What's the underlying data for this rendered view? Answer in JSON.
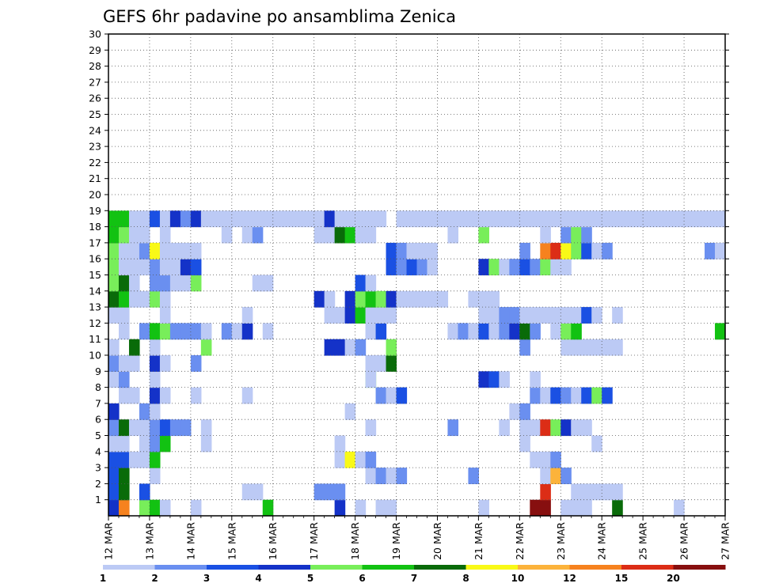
{
  "chart_data": {
    "type": "heatmap",
    "title": "GEFS 6hr padavine po ansamblima Zenica",
    "y_ticks": [
      "1",
      "2",
      "3",
      "4",
      "5",
      "6",
      "7",
      "8",
      "9",
      "10",
      "11",
      "12",
      "13",
      "14",
      "15",
      "16",
      "17",
      "18",
      "19",
      "20",
      "21",
      "22",
      "23",
      "24",
      "25",
      "26",
      "27",
      "28",
      "29",
      "30"
    ],
    "x_ticks": [
      "12 MAR",
      "13 MAR",
      "14 MAR",
      "15 MAR",
      "16 MAR",
      "17 MAR",
      "18 MAR",
      "19 MAR",
      "20 MAR",
      "21 MAR",
      "22 MAR",
      "23 MAR",
      "24 MAR",
      "25 MAR",
      "26 MAR",
      "27 MAR"
    ],
    "x_range": [
      0,
      60
    ],
    "y_range": [
      0,
      30
    ],
    "grid": true,
    "levels": [
      "1",
      "2",
      "3",
      "4",
      "5",
      "6",
      "7",
      "8",
      "10",
      "12",
      "15",
      "20"
    ],
    "colors": [
      "#bccaf5",
      "#6a8ff0",
      "#1a50e3",
      "#1432c8",
      "#78ee5a",
      "#12c212",
      "#096b09",
      "#f9f917",
      "#fcb33b",
      "#f6821e",
      "#dc2d16",
      "#870f0f"
    ],
    "cells": [
      [
        0,
        0,
        3
      ],
      [
        1,
        0,
        9
      ],
      [
        3,
        0,
        4
      ],
      [
        4,
        0,
        5
      ],
      [
        5,
        0,
        0
      ],
      [
        8,
        0,
        0
      ],
      [
        15,
        0,
        5
      ],
      [
        22,
        0,
        3
      ],
      [
        24,
        0,
        0
      ],
      [
        26,
        0,
        0
      ],
      [
        27,
        0,
        0
      ],
      [
        55,
        0,
        0
      ],
      [
        36,
        0,
        0
      ],
      [
        41,
        0,
        11
      ],
      [
        42,
        0,
        11
      ],
      [
        44,
        0,
        0
      ],
      [
        45,
        0,
        0
      ],
      [
        46,
        0,
        0
      ],
      [
        49,
        0,
        6
      ],
      [
        0,
        1,
        2
      ],
      [
        1,
        1,
        6
      ],
      [
        3,
        1,
        2
      ],
      [
        13,
        1,
        0
      ],
      [
        14,
        1,
        0
      ],
      [
        20,
        1,
        1
      ],
      [
        21,
        1,
        1
      ],
      [
        22,
        1,
        1
      ],
      [
        42,
        1,
        10
      ],
      [
        45,
        1,
        0
      ],
      [
        46,
        1,
        0
      ],
      [
        47,
        1,
        0
      ],
      [
        48,
        1,
        0
      ],
      [
        49,
        1,
        0
      ],
      [
        0,
        2,
        2
      ],
      [
        1,
        2,
        6
      ],
      [
        4,
        2,
        0
      ],
      [
        25,
        2,
        0
      ],
      [
        26,
        2,
        1
      ],
      [
        27,
        2,
        0
      ],
      [
        28,
        2,
        1
      ],
      [
        35,
        2,
        1
      ],
      [
        42,
        2,
        0
      ],
      [
        43,
        2,
        8
      ],
      [
        44,
        2,
        1
      ],
      [
        0,
        3,
        2
      ],
      [
        1,
        3,
        2
      ],
      [
        2,
        3,
        0
      ],
      [
        3,
        3,
        0
      ],
      [
        4,
        3,
        5
      ],
      [
        22,
        3,
        0
      ],
      [
        23,
        3,
        7
      ],
      [
        24,
        3,
        0
      ],
      [
        25,
        3,
        1
      ],
      [
        41,
        3,
        0
      ],
      [
        42,
        3,
        0
      ],
      [
        43,
        3,
        1
      ],
      [
        0,
        4,
        0
      ],
      [
        1,
        4,
        0
      ],
      [
        3,
        4,
        0
      ],
      [
        4,
        4,
        1
      ],
      [
        5,
        4,
        5
      ],
      [
        9,
        4,
        0
      ],
      [
        22,
        4,
        0
      ],
      [
        40,
        4,
        0
      ],
      [
        47,
        4,
        0
      ],
      [
        0,
        5,
        1
      ],
      [
        1,
        5,
        6
      ],
      [
        2,
        5,
        0
      ],
      [
        3,
        5,
        0
      ],
      [
        4,
        5,
        1
      ],
      [
        5,
        5,
        2
      ],
      [
        6,
        5,
        1
      ],
      [
        7,
        5,
        1
      ],
      [
        9,
        5,
        0
      ],
      [
        25,
        5,
        0
      ],
      [
        33,
        5,
        1
      ],
      [
        38,
        5,
        0
      ],
      [
        40,
        5,
        0
      ],
      [
        41,
        5,
        0
      ],
      [
        42,
        5,
        10
      ],
      [
        43,
        5,
        4
      ],
      [
        44,
        5,
        3
      ],
      [
        45,
        5,
        0
      ],
      [
        46,
        5,
        0
      ],
      [
        0,
        6,
        3
      ],
      [
        3,
        6,
        1
      ],
      [
        4,
        6,
        0
      ],
      [
        23,
        6,
        0
      ],
      [
        39,
        6,
        0
      ],
      [
        40,
        6,
        1
      ],
      [
        1,
        7,
        0
      ],
      [
        2,
        7,
        0
      ],
      [
        4,
        7,
        3
      ],
      [
        5,
        7,
        0
      ],
      [
        8,
        7,
        0
      ],
      [
        13,
        7,
        0
      ],
      [
        26,
        7,
        1
      ],
      [
        27,
        7,
        0
      ],
      [
        28,
        7,
        2
      ],
      [
        41,
        7,
        1
      ],
      [
        42,
        7,
        0
      ],
      [
        43,
        7,
        2
      ],
      [
        44,
        7,
        1
      ],
      [
        45,
        7,
        0
      ],
      [
        46,
        7,
        2
      ],
      [
        47,
        7,
        4
      ],
      [
        48,
        7,
        2
      ],
      [
        0,
        8,
        0
      ],
      [
        1,
        8,
        1
      ],
      [
        4,
        8,
        0
      ],
      [
        25,
        8,
        4
      ],
      [
        25,
        8,
        0
      ],
      [
        36,
        8,
        3
      ],
      [
        37,
        8,
        2
      ],
      [
        38,
        8,
        0
      ],
      [
        41,
        8,
        0
      ],
      [
        0,
        9,
        1
      ],
      [
        1,
        9,
        0
      ],
      [
        2,
        9,
        0
      ],
      [
        4,
        9,
        3
      ],
      [
        5,
        9,
        0
      ],
      [
        8,
        9,
        1
      ],
      [
        25,
        9,
        0
      ],
      [
        26,
        9,
        0
      ],
      [
        27,
        9,
        6
      ],
      [
        0,
        10,
        0
      ],
      [
        2,
        10,
        6
      ],
      [
        4,
        10,
        0
      ],
      [
        9,
        10,
        4
      ],
      [
        21,
        10,
        3
      ],
      [
        22,
        10,
        3
      ],
      [
        23,
        10,
        0
      ],
      [
        24,
        10,
        1
      ],
      [
        27,
        10,
        4
      ],
      [
        40,
        10,
        1
      ],
      [
        44,
        10,
        0
      ],
      [
        45,
        10,
        0
      ],
      [
        46,
        10,
        0
      ],
      [
        47,
        10,
        0
      ],
      [
        48,
        10,
        0
      ],
      [
        49,
        10,
        0
      ],
      [
        1,
        11,
        0
      ],
      [
        3,
        11,
        1
      ],
      [
        4,
        11,
        5
      ],
      [
        5,
        11,
        4
      ],
      [
        6,
        11,
        1
      ],
      [
        7,
        11,
        1
      ],
      [
        8,
        11,
        1
      ],
      [
        9,
        11,
        0
      ],
      [
        11,
        11,
        1
      ],
      [
        12,
        11,
        0
      ],
      [
        13,
        11,
        3
      ],
      [
        15,
        11,
        0
      ],
      [
        25,
        11,
        0
      ],
      [
        26,
        11,
        2
      ],
      [
        33,
        11,
        0
      ],
      [
        34,
        11,
        1
      ],
      [
        35,
        11,
        0
      ],
      [
        36,
        11,
        2
      ],
      [
        37,
        11,
        0
      ],
      [
        38,
        11,
        1
      ],
      [
        39,
        11,
        3
      ],
      [
        40,
        11,
        6
      ],
      [
        41,
        11,
        1
      ],
      [
        43,
        11,
        0
      ],
      [
        44,
        11,
        4
      ],
      [
        45,
        11,
        5
      ],
      [
        59,
        11,
        5
      ],
      [
        0,
        12,
        0
      ],
      [
        1,
        12,
        0
      ],
      [
        5,
        12,
        0
      ],
      [
        13,
        12,
        0
      ],
      [
        21,
        12,
        0
      ],
      [
        22,
        12,
        0
      ],
      [
        23,
        12,
        3
      ],
      [
        24,
        12,
        5
      ],
      [
        25,
        12,
        0
      ],
      [
        26,
        12,
        0
      ],
      [
        27,
        12,
        0
      ],
      [
        36,
        12,
        0
      ],
      [
        37,
        12,
        0
      ],
      [
        38,
        12,
        1
      ],
      [
        39,
        12,
        1
      ],
      [
        40,
        12,
        0
      ],
      [
        41,
        12,
        0
      ],
      [
        42,
        12,
        0
      ],
      [
        43,
        12,
        0
      ],
      [
        44,
        12,
        0
      ],
      [
        45,
        12,
        0
      ],
      [
        46,
        12,
        2
      ],
      [
        47,
        12,
        0
      ],
      [
        49,
        12,
        0
      ],
      [
        0,
        13,
        6
      ],
      [
        1,
        13,
        5
      ],
      [
        2,
        13,
        0
      ],
      [
        3,
        13,
        0
      ],
      [
        4,
        13,
        4
      ],
      [
        5,
        13,
        0
      ],
      [
        20,
        13,
        3
      ],
      [
        21,
        13,
        0
      ],
      [
        23,
        13,
        3
      ],
      [
        24,
        13,
        4
      ],
      [
        25,
        13,
        5
      ],
      [
        26,
        13,
        4
      ],
      [
        27,
        13,
        3
      ],
      [
        28,
        13,
        0
      ],
      [
        29,
        13,
        0
      ],
      [
        30,
        13,
        0
      ],
      [
        31,
        13,
        0
      ],
      [
        32,
        13,
        0
      ],
      [
        35,
        13,
        0
      ],
      [
        36,
        13,
        0
      ],
      [
        37,
        13,
        0
      ],
      [
        0,
        14,
        4
      ],
      [
        1,
        14,
        6
      ],
      [
        2,
        14,
        0
      ],
      [
        4,
        14,
        1
      ],
      [
        5,
        14,
        1
      ],
      [
        6,
        14,
        0
      ],
      [
        7,
        14,
        0
      ],
      [
        8,
        14,
        4
      ],
      [
        14,
        14,
        0
      ],
      [
        15,
        14,
        0
      ],
      [
        24,
        14,
        2
      ],
      [
        25,
        14,
        0
      ],
      [
        0,
        15,
        4
      ],
      [
        1,
        15,
        0
      ],
      [
        2,
        15,
        0
      ],
      [
        3,
        15,
        0
      ],
      [
        4,
        15,
        1
      ],
      [
        5,
        15,
        0
      ],
      [
        6,
        15,
        0
      ],
      [
        7,
        15,
        3
      ],
      [
        8,
        15,
        2
      ],
      [
        27,
        15,
        2
      ],
      [
        28,
        15,
        1
      ],
      [
        29,
        15,
        2
      ],
      [
        30,
        15,
        1
      ],
      [
        31,
        15,
        0
      ],
      [
        36,
        15,
        3
      ],
      [
        37,
        15,
        4
      ],
      [
        38,
        15,
        0
      ],
      [
        39,
        15,
        1
      ],
      [
        40,
        15,
        2
      ],
      [
        41,
        15,
        1
      ],
      [
        42,
        15,
        4
      ],
      [
        43,
        15,
        0
      ],
      [
        44,
        15,
        0
      ],
      [
        0,
        16,
        4
      ],
      [
        1,
        16,
        0
      ],
      [
        2,
        16,
        0
      ],
      [
        3,
        16,
        1
      ],
      [
        4,
        16,
        7
      ],
      [
        5,
        16,
        0
      ],
      [
        6,
        16,
        0
      ],
      [
        7,
        16,
        0
      ],
      [
        8,
        16,
        0
      ],
      [
        27,
        16,
        2
      ],
      [
        28,
        16,
        1
      ],
      [
        29,
        16,
        0
      ],
      [
        30,
        16,
        0
      ],
      [
        31,
        16,
        0
      ],
      [
        40,
        16,
        1
      ],
      [
        42,
        16,
        9
      ],
      [
        43,
        16,
        10
      ],
      [
        44,
        16,
        7
      ],
      [
        45,
        16,
        4
      ],
      [
        46,
        16,
        2
      ],
      [
        47,
        16,
        0
      ],
      [
        48,
        16,
        1
      ],
      [
        58,
        16,
        1
      ],
      [
        59,
        16,
        0
      ],
      [
        0,
        17,
        5
      ],
      [
        1,
        17,
        4
      ],
      [
        2,
        17,
        0
      ],
      [
        3,
        17,
        0
      ],
      [
        5,
        17,
        0
      ],
      [
        11,
        17,
        0
      ],
      [
        13,
        17,
        0
      ],
      [
        14,
        17,
        1
      ],
      [
        20,
        17,
        0
      ],
      [
        21,
        17,
        0
      ],
      [
        22,
        17,
        6
      ],
      [
        23,
        17,
        5
      ],
      [
        24,
        17,
        0
      ],
      [
        25,
        17,
        0
      ],
      [
        33,
        17,
        0
      ],
      [
        36,
        17,
        4
      ],
      [
        42,
        17,
        0
      ],
      [
        44,
        17,
        1
      ],
      [
        45,
        17,
        4
      ],
      [
        46,
        17,
        1
      ],
      [
        0,
        18,
        5
      ],
      [
        1,
        18,
        5
      ],
      [
        2,
        18,
        0
      ],
      [
        3,
        18,
        0
      ],
      [
        4,
        18,
        2
      ],
      [
        5,
        18,
        0
      ],
      [
        6,
        18,
        3
      ],
      [
        7,
        18,
        1
      ],
      [
        8,
        18,
        3
      ],
      [
        9,
        18,
        0
      ],
      [
        10,
        18,
        0
      ],
      [
        11,
        18,
        0
      ],
      [
        12,
        18,
        0
      ],
      [
        13,
        18,
        0
      ],
      [
        14,
        18,
        0
      ],
      [
        15,
        18,
        0
      ],
      [
        16,
        18,
        0
      ],
      [
        17,
        18,
        0
      ],
      [
        18,
        18,
        0
      ],
      [
        19,
        18,
        0
      ],
      [
        20,
        18,
        0
      ],
      [
        21,
        18,
        3
      ],
      [
        22,
        18,
        0
      ],
      [
        23,
        18,
        0
      ],
      [
        24,
        18,
        0
      ],
      [
        25,
        18,
        0
      ],
      [
        26,
        18,
        0
      ],
      [
        28,
        18,
        0
      ],
      [
        29,
        18,
        0
      ],
      [
        30,
        18,
        0
      ],
      [
        31,
        18,
        0
      ],
      [
        32,
        18,
        0
      ],
      [
        33,
        18,
        0
      ],
      [
        34,
        18,
        0
      ],
      [
        35,
        18,
        0
      ],
      [
        36,
        18,
        0
      ],
      [
        37,
        18,
        0
      ],
      [
        38,
        18,
        0
      ],
      [
        39,
        18,
        0
      ],
      [
        40,
        18,
        0
      ],
      [
        41,
        18,
        0
      ],
      [
        42,
        18,
        0
      ],
      [
        43,
        18,
        0
      ],
      [
        44,
        18,
        0
      ],
      [
        45,
        18,
        0
      ],
      [
        46,
        18,
        0
      ],
      [
        47,
        18,
        0
      ],
      [
        48,
        18,
        0
      ],
      [
        49,
        18,
        0
      ],
      [
        50,
        18,
        0
      ],
      [
        51,
        18,
        0
      ],
      [
        52,
        18,
        0
      ],
      [
        53,
        18,
        0
      ],
      [
        54,
        18,
        0
      ],
      [
        55,
        18,
        0
      ],
      [
        56,
        18,
        0
      ],
      [
        57,
        18,
        0
      ],
      [
        58,
        18,
        0
      ],
      [
        59,
        18,
        0
      ]
    ]
  }
}
